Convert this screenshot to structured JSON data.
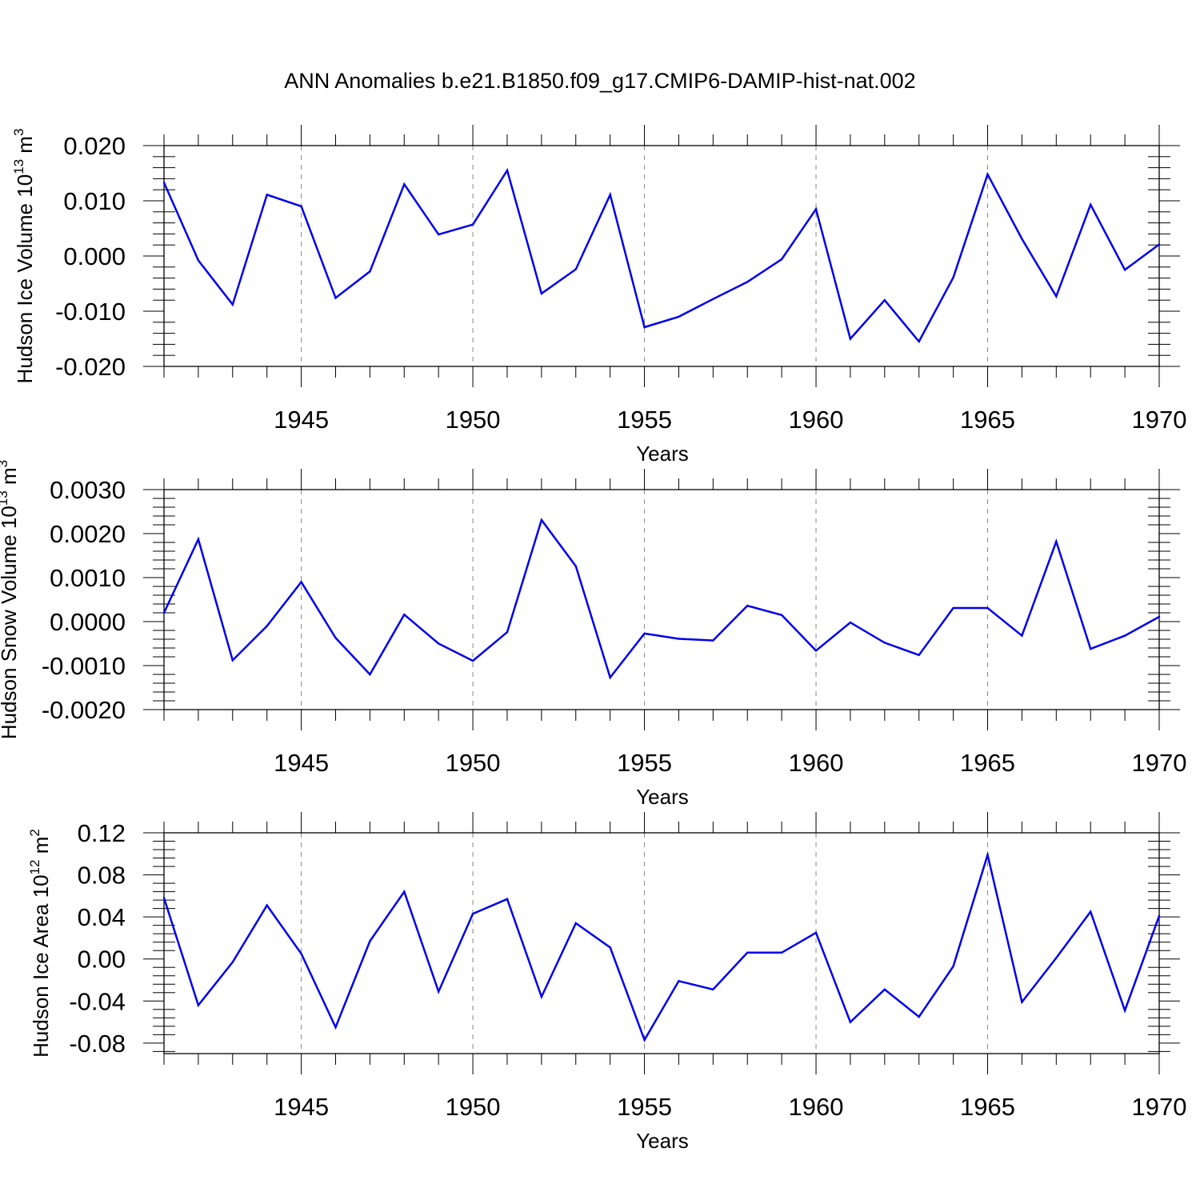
{
  "figure": {
    "title": "ANN Anomalies b.e21.B1850.f09_g17.CMIP6-DAMIP-hist-nat.002"
  },
  "chart_data": [
    {
      "type": "line",
      "title": "ANN Anomalies b.e21.B1850.f09_g17.CMIP6-DAMIP-hist-nat.002",
      "ylabel": "Hudson Ice Volume",
      "yunit_base": "10",
      "yunit_exp": "13",
      "yunit_tail": "m",
      "yunit_tail_exp": "3",
      "xlabel": "Years",
      "xlim": [
        1941,
        1970
      ],
      "ylim": [
        -0.02,
        0.02
      ],
      "yticks": [
        -0.02,
        -0.01,
        0.0,
        0.01,
        0.02
      ],
      "ytick_labels": [
        "-0.020",
        "-0.010",
        "0.000",
        "0.010",
        "0.020"
      ],
      "xticks": [
        1945,
        1950,
        1955,
        1960,
        1965,
        1970
      ],
      "xtick_labels": [
        "1945",
        "1950",
        "1955",
        "1960",
        "1965",
        "1970"
      ],
      "grid": "vertical dashed at major x ticks",
      "line_color": "#0000ee",
      "x": [
        1941,
        1942,
        1943,
        1944,
        1945,
        1946,
        1947,
        1948,
        1949,
        1950,
        1951,
        1952,
        1953,
        1954,
        1955,
        1956,
        1957,
        1958,
        1959,
        1960,
        1961,
        1962,
        1963,
        1964,
        1965,
        1966,
        1967,
        1968,
        1969,
        1970
      ],
      "values": [
        0.0133,
        -0.0008,
        -0.0088,
        0.0111,
        0.009,
        -0.0076,
        -0.0028,
        0.013,
        0.0039,
        0.0057,
        0.0155,
        -0.0068,
        -0.0024,
        0.0111,
        -0.0129,
        -0.011,
        -0.0078,
        -0.0047,
        -0.0006,
        0.0085,
        -0.015,
        -0.008,
        -0.0155,
        -0.0039,
        0.0148,
        0.0031,
        -0.0073,
        0.0093,
        -0.0025,
        0.0021
      ]
    },
    {
      "type": "line",
      "ylabel": "Hudson Snow Volume",
      "yunit_base": "10",
      "yunit_exp": "13",
      "yunit_tail": "m",
      "yunit_tail_exp": "3",
      "xlabel": "Years",
      "xlim": [
        1941,
        1970
      ],
      "ylim": [
        -0.002,
        0.003
      ],
      "yticks": [
        -0.002,
        -0.001,
        0.0,
        0.001,
        0.002,
        0.003
      ],
      "ytick_labels": [
        "-0.0020",
        "-0.0010",
        "0.0000",
        "0.0010",
        "0.0020",
        "0.0030"
      ],
      "xticks": [
        1945,
        1950,
        1955,
        1960,
        1965,
        1970
      ],
      "xtick_labels": [
        "1945",
        "1950",
        "1955",
        "1960",
        "1965",
        "1970"
      ],
      "grid": "vertical dashed at major x ticks",
      "line_color": "#0000ee",
      "x": [
        1941,
        1942,
        1943,
        1944,
        1945,
        1946,
        1947,
        1948,
        1949,
        1950,
        1951,
        1952,
        1953,
        1954,
        1955,
        1956,
        1957,
        1958,
        1959,
        1960,
        1961,
        1962,
        1963,
        1964,
        1965,
        1966,
        1967,
        1968,
        1969,
        1970
      ],
      "values": [
        0.0002,
        0.00187,
        -0.00088,
        -0.0001,
        0.0009,
        -0.00037,
        -0.0012,
        0.00016,
        -0.0005,
        -0.00089,
        -0.00024,
        0.00231,
        0.00126,
        -0.00127,
        -0.00027,
        -0.00039,
        -0.00043,
        0.00036,
        0.00015,
        -0.00066,
        -2e-05,
        -0.00048,
        -0.00076,
        0.00031,
        0.00031,
        -0.00032,
        0.00182,
        -0.00062,
        -0.00032,
        0.00011
      ]
    },
    {
      "type": "line",
      "ylabel": "Hudson Ice Area",
      "yunit_base": "10",
      "yunit_exp": "12",
      "yunit_tail": "m",
      "yunit_tail_exp": "2",
      "xlabel": "Years",
      "xlim": [
        1941,
        1970
      ],
      "ylim": [
        -0.09,
        0.12
      ],
      "yticks": [
        -0.08,
        -0.04,
        0.0,
        0.04,
        0.08,
        0.12
      ],
      "ytick_labels": [
        "-0.08",
        "-0.04",
        "0.00",
        "0.04",
        "0.08",
        "0.12"
      ],
      "xticks": [
        1945,
        1950,
        1955,
        1960,
        1965,
        1970
      ],
      "xtick_labels": [
        "1945",
        "1950",
        "1955",
        "1960",
        "1965",
        "1970"
      ],
      "grid": "vertical dashed at major x ticks",
      "line_color": "#0000ee",
      "x": [
        1941,
        1942,
        1943,
        1944,
        1945,
        1946,
        1947,
        1948,
        1949,
        1950,
        1951,
        1952,
        1953,
        1954,
        1955,
        1956,
        1957,
        1958,
        1959,
        1960,
        1961,
        1962,
        1963,
        1964,
        1965,
        1966,
        1967,
        1968,
        1969,
        1970
      ],
      "values": [
        0.058,
        -0.044,
        -0.003,
        0.051,
        0.005,
        -0.065,
        0.017,
        0.064,
        -0.031,
        0.043,
        0.057,
        -0.036,
        0.034,
        0.011,
        -0.077,
        -0.021,
        -0.029,
        0.006,
        0.006,
        0.025,
        -0.06,
        -0.029,
        -0.055,
        -0.007,
        0.099,
        -0.041,
        0.001,
        0.045,
        -0.049,
        0.041
      ]
    }
  ]
}
